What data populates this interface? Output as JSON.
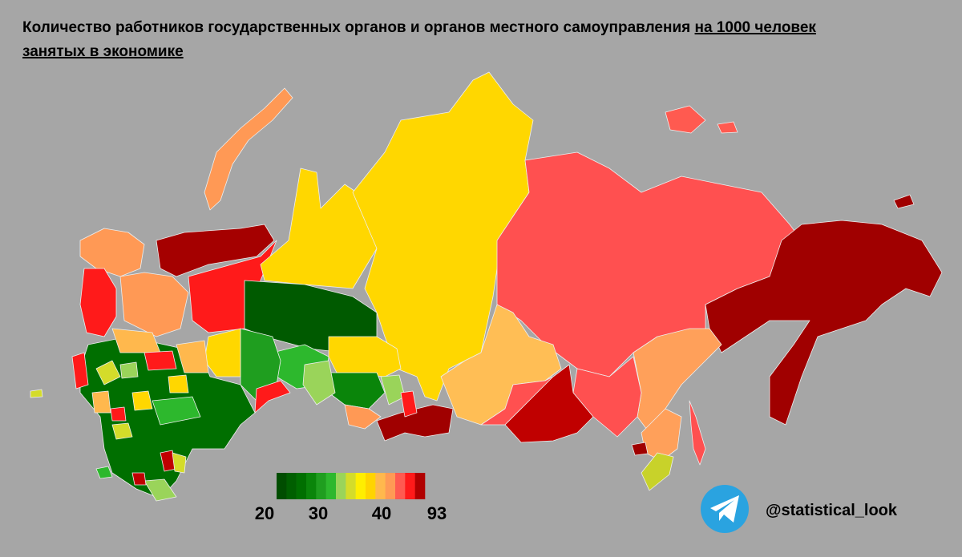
{
  "title": {
    "plain": "Количество работников государственных органов и органов местного самоуправления",
    "underlined": [
      "на 1000 человек",
      "занятых в экономике"
    ]
  },
  "legend": {
    "colors": [
      "#004d00",
      "#005f00",
      "#006f00",
      "#0a850a",
      "#1f9e1f",
      "#2db82d",
      "#9ad45a",
      "#d4dc2a",
      "#ffee00",
      "#ffd400",
      "#ffb84d",
      "#ff9a55",
      "#ff5a50",
      "#ff1a1a",
      "#b00000"
    ],
    "labels": [
      "20",
      "30",
      "40",
      "93"
    ]
  },
  "handle": "@statistical_look"
}
